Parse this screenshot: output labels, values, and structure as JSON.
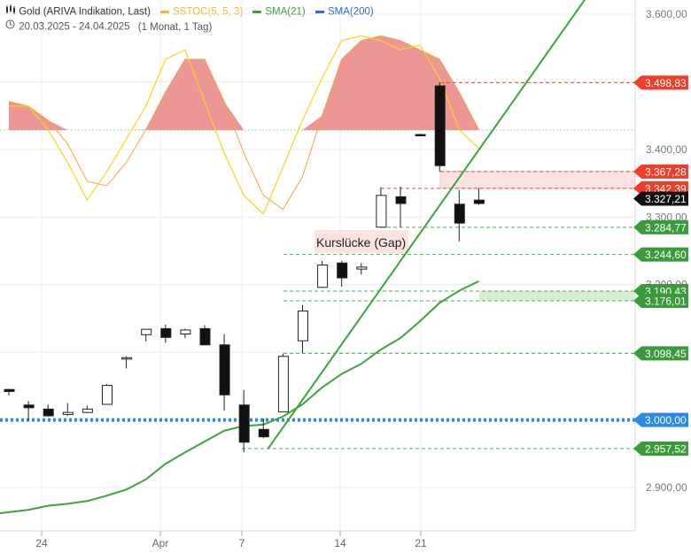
{
  "header": {
    "instrument": "Gold (ARIVA Indikation, Last)",
    "date_range": "20.03.2025 - 24.04.2025",
    "period": "(1 Monat, 1 Tag)",
    "legend": [
      {
        "label": "SSTOC(5, 5, 3)",
        "color": "#f7b733"
      },
      {
        "label": "SMA(21)",
        "color": "#3aa53a"
      },
      {
        "label": "SMA(200)",
        "color": "#2b6cde"
      }
    ]
  },
  "chart_data": {
    "type": "candlestick",
    "y_axis": {
      "ticks": [
        "3.600,00",
        "3.400,00",
        "3.300,00",
        "3.200,00",
        "2.900,00"
      ],
      "tick_values": [
        3600,
        3400,
        3300,
        3200,
        2900
      ],
      "range": [
        2820,
        3625
      ]
    },
    "x_axis": {
      "ticks": [
        "24",
        "Apr",
        "7",
        "14",
        "21"
      ]
    },
    "candles": [
      {
        "o": 3045,
        "h": 3046,
        "c": 3042,
        "l": 3036
      },
      {
        "o": 3022,
        "h": 3028,
        "c": 3018,
        "l": 3000
      },
      {
        "o": 3016,
        "h": 3023,
        "c": 3006,
        "l": 3005
      },
      {
        "o": 3008,
        "h": 3025,
        "c": 3011,
        "l": 3006
      },
      {
        "o": 3011,
        "h": 3021,
        "c": 3016,
        "l": 3010
      },
      {
        "o": 3023,
        "h": 3053,
        "c": 3051,
        "l": 3023
      },
      {
        "o": 3090,
        "h": 3094,
        "c": 3092,
        "l": 3076
      },
      {
        "o": 3126,
        "h": 3133,
        "c": 3134,
        "l": 3116
      },
      {
        "o": 3135,
        "h": 3141,
        "c": 3122,
        "l": 3114
      },
      {
        "o": 3127,
        "h": 3135,
        "c": 3133,
        "l": 3121
      },
      {
        "o": 3135,
        "h": 3140,
        "c": 3111,
        "l": 3110
      },
      {
        "o": 3111,
        "h": 3127,
        "c": 3037,
        "l": 3014
      },
      {
        "o": 3022,
        "h": 3044,
        "c": 2967,
        "l": 2952
      },
      {
        "o": 2986,
        "h": 3002,
        "c": 2975,
        "l": 2973
      },
      {
        "o": 3012,
        "h": 3098,
        "c": 3094,
        "l": 3012
      },
      {
        "o": 3117,
        "h": 3170,
        "c": 3161,
        "l": 3099
      },
      {
        "o": 3196,
        "h": 3235,
        "c": 3229,
        "l": 3195
      },
      {
        "o": 3232,
        "h": 3235,
        "c": 3210,
        "l": 3197
      },
      {
        "o": 3223,
        "h": 3232,
        "c": 3226,
        "l": 3215
      },
      {
        "o": 3285,
        "h": 3344,
        "c": 3332,
        "l": 3284
      },
      {
        "o": 3330,
        "h": 3345,
        "c": 3320,
        "l": 3285
      },
      {
        "o": 3422,
        "h": 3423,
        "c": 3421,
        "l": 3420
      },
      {
        "o": 3494,
        "h": 3499,
        "c": 3376,
        "l": 3367
      },
      {
        "o": 3319,
        "h": 3340,
        "c": 3291,
        "l": 3264
      },
      {
        "o": 3325,
        "h": 3343,
        "c": 3320,
        "l": 3318
      }
    ],
    "sma21": [
      2862,
      2867,
      2873,
      2876,
      2880,
      2888,
      2897,
      2912,
      2935,
      2952,
      2968,
      2984,
      2991,
      2993,
      3005,
      3023,
      3048,
      3068,
      3083,
      3104,
      3121,
      3146,
      3173,
      3191,
      3205
    ],
    "sma200_level": 3000,
    "stochastic": {
      "k": [
        3.5,
        3.5,
        3.0,
        2.3,
        1.5,
        2.1,
        2.8,
        3.5,
        4.5,
        4.7,
        3.6,
        2.5,
        1.6,
        1.2,
        2.2,
        3.2,
        4.1,
        4.9,
        5.0,
        4.9,
        4.7,
        4.8,
        4.1,
        3.0,
        2.6
      ],
      "d": [
        3.6,
        3.5,
        3.2,
        2.7,
        1.9,
        1.8,
        2.3,
        3.0,
        3.8,
        4.5,
        4.5,
        3.6,
        2.5,
        1.6,
        1.3,
        2.0,
        3.3,
        4.5,
        4.9,
        5.0,
        4.9,
        4.7,
        4.5,
        3.8,
        3.0
      ]
    },
    "annotations": {
      "gap_label": "Kurslücke (Gap)",
      "levels": [
        {
          "label": "3.498,83",
          "value": 3498.83,
          "color": "#e53b2c"
        },
        {
          "label": "3.367,28",
          "value": 3367.28,
          "color": "#e53b2c"
        },
        {
          "label": "3.342,39",
          "value": 3342.39,
          "color": "#e53b2c"
        },
        {
          "label": "3.327,21",
          "value": 3327.21,
          "color": "#111111"
        },
        {
          "label": "3.284,77",
          "value": 3284.77,
          "color": "#3aa53a"
        },
        {
          "label": "3.244,60",
          "value": 3244.6,
          "color": "#3aa53a"
        },
        {
          "label": "3.190,43",
          "value": 3190.43,
          "color": "#3aa53a"
        },
        {
          "label": "3.176,01",
          "value": 3176.01,
          "color": "#3aa53a"
        },
        {
          "label": "3.098,45",
          "value": 3098.45,
          "color": "#3aa53a"
        },
        {
          "label": "3.000,00",
          "value": 3000.0,
          "color": "#2b6cde"
        },
        {
          "label": "2.957,52",
          "value": 2957.52,
          "color": "#3aa53a"
        }
      ],
      "trendline": {
        "from": {
          "index": 13,
          "value": 2957
        },
        "to": {
          "index": 30,
          "value": 3636
        }
      }
    },
    "grid": true
  }
}
